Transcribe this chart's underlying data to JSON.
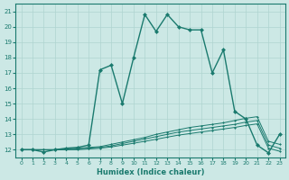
{
  "xlabel": "Humidex (Indice chaleur)",
  "bg_color": "#cce8e5",
  "line_color": "#1a7a6e",
  "grid_color": "#afd4d0",
  "xlim": [
    -0.5,
    23.5
  ],
  "ylim": [
    11.5,
    21.5
  ],
  "xticks": [
    0,
    1,
    2,
    3,
    4,
    5,
    6,
    7,
    8,
    9,
    10,
    11,
    12,
    13,
    14,
    15,
    16,
    17,
    18,
    19,
    20,
    21,
    22,
    23
  ],
  "yticks": [
    12,
    13,
    14,
    15,
    16,
    17,
    18,
    19,
    20,
    21
  ],
  "line1_x": [
    0,
    1,
    2,
    3,
    4,
    5,
    6,
    7,
    8,
    9,
    10,
    11,
    12,
    13,
    14,
    15,
    16,
    17,
    18,
    19,
    20,
    21,
    22,
    23
  ],
  "line1_y": [
    12.0,
    12.0,
    11.85,
    12.0,
    12.1,
    12.15,
    12.3,
    17.2,
    17.5,
    15.0,
    18.0,
    20.8,
    19.7,
    20.8,
    20.0,
    19.8,
    19.8,
    17.0,
    18.5,
    14.5,
    14.0,
    12.3,
    11.8,
    13.0
  ],
  "line2_x": [
    0,
    1,
    2,
    3,
    4,
    5,
    6,
    7,
    8,
    9,
    10,
    11,
    12,
    13,
    14,
    15,
    16,
    17,
    18,
    19,
    20,
    21,
    22,
    23
  ],
  "line2_y": [
    12.0,
    12.0,
    12.0,
    12.0,
    12.05,
    12.1,
    12.15,
    12.2,
    12.35,
    12.5,
    12.65,
    12.8,
    13.0,
    13.15,
    13.3,
    13.45,
    13.55,
    13.65,
    13.75,
    13.9,
    14.05,
    14.15,
    12.55,
    12.35
  ],
  "line3_x": [
    0,
    1,
    2,
    3,
    4,
    5,
    6,
    7,
    8,
    9,
    10,
    11,
    12,
    13,
    14,
    15,
    16,
    17,
    18,
    19,
    20,
    21,
    22,
    23
  ],
  "line3_y": [
    12.0,
    12.0,
    12.0,
    12.0,
    12.0,
    12.05,
    12.1,
    12.15,
    12.25,
    12.4,
    12.55,
    12.7,
    12.85,
    13.0,
    13.15,
    13.25,
    13.35,
    13.45,
    13.55,
    13.65,
    13.8,
    13.9,
    12.3,
    12.1
  ],
  "line4_x": [
    0,
    1,
    2,
    3,
    4,
    5,
    6,
    7,
    8,
    9,
    10,
    11,
    12,
    13,
    14,
    15,
    16,
    17,
    18,
    19,
    20,
    21,
    22,
    23
  ],
  "line4_y": [
    12.0,
    12.0,
    12.0,
    12.0,
    12.0,
    12.0,
    12.05,
    12.1,
    12.18,
    12.3,
    12.42,
    12.55,
    12.68,
    12.82,
    12.95,
    13.05,
    13.15,
    13.25,
    13.35,
    13.45,
    13.58,
    13.68,
    12.1,
    11.9
  ]
}
